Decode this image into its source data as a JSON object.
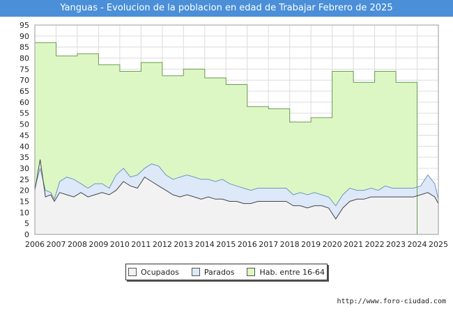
{
  "header": {
    "title": "Yanguas - Evolucion de la poblacion en edad de Trabajar Febrero de 2025"
  },
  "footer": {
    "source": "http://www.foro-ciudad.com"
  },
  "chart_data": {
    "type": "area",
    "title": "Yanguas - Evolucion de la poblacion en edad de Trabajar Febrero de 2025",
    "xlabel": "",
    "ylabel": "",
    "xlim": [
      2006,
      2025
    ],
    "ylim": [
      0,
      95
    ],
    "y_ticks": [
      "0",
      "5",
      "10",
      "15",
      "20",
      "25",
      "30",
      "35",
      "40",
      "45",
      "50",
      "55",
      "60",
      "65",
      "70",
      "75",
      "80",
      "85",
      "90",
      "95"
    ],
    "x_ticks": [
      "2006",
      "2007",
      "2008",
      "2009",
      "2010",
      "2011",
      "2012",
      "2013",
      "2014",
      "2015",
      "2016",
      "2017",
      "2018",
      "2019",
      "2020",
      "2021",
      "2022",
      "2023",
      "2024",
      "2025"
    ],
    "legend": [
      "Ocupados",
      "Parados",
      "Hab. entre 16-64"
    ],
    "colors": {
      "hab": "#ddf7c4",
      "hab_line": "#6a9a50",
      "parados": "#dde9f8",
      "parados_line": "#6f95c0",
      "ocupados": "#f2f2f2",
      "ocupados_line": "#444444",
      "grid": "#dcdcdc"
    },
    "series": [
      {
        "name": "Hab. entre 16-64",
        "points": [
          [
            2006,
            87
          ],
          [
            2007,
            87
          ],
          [
            2007,
            81
          ],
          [
            2008,
            81
          ],
          [
            2008,
            82
          ],
          [
            2009,
            82
          ],
          [
            2009,
            77
          ],
          [
            2010,
            77
          ],
          [
            2010,
            74
          ],
          [
            2011,
            74
          ],
          [
            2011,
            78
          ],
          [
            2012,
            78
          ],
          [
            2012,
            72
          ],
          [
            2013,
            72
          ],
          [
            2013,
            75
          ],
          [
            2014,
            75
          ],
          [
            2014,
            71
          ],
          [
            2015,
            71
          ],
          [
            2015,
            68
          ],
          [
            2016,
            68
          ],
          [
            2016,
            58
          ],
          [
            2017,
            58
          ],
          [
            2017,
            57
          ],
          [
            2018,
            57
          ],
          [
            2018,
            51
          ],
          [
            2019,
            51
          ],
          [
            2019,
            53
          ],
          [
            2020,
            53
          ],
          [
            2020,
            74
          ],
          [
            2021,
            74
          ],
          [
            2021,
            69
          ],
          [
            2022,
            69
          ],
          [
            2022,
            74
          ],
          [
            2023,
            74
          ],
          [
            2023,
            69
          ],
          [
            2024,
            69
          ],
          [
            2024,
            0
          ]
        ]
      },
      {
        "name": "Parados",
        "points": [
          [
            2006,
            21
          ],
          [
            2006.25,
            30
          ],
          [
            2006.5,
            20
          ],
          [
            2006.75,
            19
          ],
          [
            2006.92,
            16
          ],
          [
            2007.17,
            24
          ],
          [
            2007.5,
            26
          ],
          [
            2007.83,
            25
          ],
          [
            2008.17,
            23
          ],
          [
            2008.5,
            21
          ],
          [
            2008.83,
            23
          ],
          [
            2009.17,
            23
          ],
          [
            2009.5,
            21
          ],
          [
            2009.83,
            27
          ],
          [
            2010.17,
            30
          ],
          [
            2010.5,
            26
          ],
          [
            2010.83,
            27
          ],
          [
            2011.17,
            30
          ],
          [
            2011.5,
            32
          ],
          [
            2011.83,
            31
          ],
          [
            2012.17,
            27
          ],
          [
            2012.5,
            25
          ],
          [
            2012.83,
            26
          ],
          [
            2013.17,
            27
          ],
          [
            2013.5,
            26
          ],
          [
            2013.83,
            25
          ],
          [
            2014.17,
            25
          ],
          [
            2014.5,
            24
          ],
          [
            2014.83,
            25
          ],
          [
            2015.17,
            23
          ],
          [
            2015.5,
            22
          ],
          [
            2015.83,
            21
          ],
          [
            2016.17,
            20
          ],
          [
            2016.5,
            21
          ],
          [
            2016.83,
            21
          ],
          [
            2017.17,
            21
          ],
          [
            2017.5,
            21
          ],
          [
            2017.83,
            21
          ],
          [
            2018.17,
            18
          ],
          [
            2018.5,
            19
          ],
          [
            2018.83,
            18
          ],
          [
            2019.17,
            19
          ],
          [
            2019.5,
            18
          ],
          [
            2019.83,
            17
          ],
          [
            2020.17,
            13
          ],
          [
            2020.5,
            18
          ],
          [
            2020.83,
            21
          ],
          [
            2021.17,
            20
          ],
          [
            2021.5,
            20
          ],
          [
            2021.83,
            21
          ],
          [
            2022.17,
            20
          ],
          [
            2022.5,
            22
          ],
          [
            2022.83,
            21
          ],
          [
            2023.17,
            21
          ],
          [
            2023.5,
            21
          ],
          [
            2023.83,
            21
          ],
          [
            2024.17,
            22
          ],
          [
            2024.5,
            27
          ],
          [
            2024.83,
            23
          ],
          [
            2025,
            16
          ]
        ]
      },
      {
        "name": "Ocupados",
        "points": [
          [
            2006,
            20
          ],
          [
            2006.25,
            34
          ],
          [
            2006.5,
            17
          ],
          [
            2006.75,
            18
          ],
          [
            2006.92,
            15
          ],
          [
            2007.17,
            19
          ],
          [
            2007.5,
            18
          ],
          [
            2007.83,
            17
          ],
          [
            2008.17,
            19
          ],
          [
            2008.5,
            17
          ],
          [
            2008.83,
            18
          ],
          [
            2009.17,
            19
          ],
          [
            2009.5,
            18
          ],
          [
            2009.83,
            20
          ],
          [
            2010.17,
            24
          ],
          [
            2010.5,
            22
          ],
          [
            2010.83,
            21
          ],
          [
            2011.17,
            26
          ],
          [
            2011.5,
            24
          ],
          [
            2011.83,
            22
          ],
          [
            2012.17,
            20
          ],
          [
            2012.5,
            18
          ],
          [
            2012.83,
            17
          ],
          [
            2013.17,
            18
          ],
          [
            2013.5,
            17
          ],
          [
            2013.83,
            16
          ],
          [
            2014.17,
            17
          ],
          [
            2014.5,
            16
          ],
          [
            2014.83,
            16
          ],
          [
            2015.17,
            15
          ],
          [
            2015.5,
            15
          ],
          [
            2015.83,
            14
          ],
          [
            2016.17,
            14
          ],
          [
            2016.5,
            15
          ],
          [
            2016.83,
            15
          ],
          [
            2017.17,
            15
          ],
          [
            2017.5,
            15
          ],
          [
            2017.83,
            15
          ],
          [
            2018.17,
            13
          ],
          [
            2018.5,
            13
          ],
          [
            2018.83,
            12
          ],
          [
            2019.17,
            13
          ],
          [
            2019.5,
            13
          ],
          [
            2019.83,
            12
          ],
          [
            2020.17,
            7
          ],
          [
            2020.5,
            12
          ],
          [
            2020.83,
            15
          ],
          [
            2021.17,
            16
          ],
          [
            2021.5,
            16
          ],
          [
            2021.83,
            17
          ],
          [
            2022.17,
            17
          ],
          [
            2022.5,
            17
          ],
          [
            2022.83,
            17
          ],
          [
            2023.17,
            17
          ],
          [
            2023.5,
            17
          ],
          [
            2023.83,
            17
          ],
          [
            2024.17,
            18
          ],
          [
            2024.5,
            19
          ],
          [
            2024.83,
            17
          ],
          [
            2025,
            14
          ]
        ]
      }
    ]
  }
}
